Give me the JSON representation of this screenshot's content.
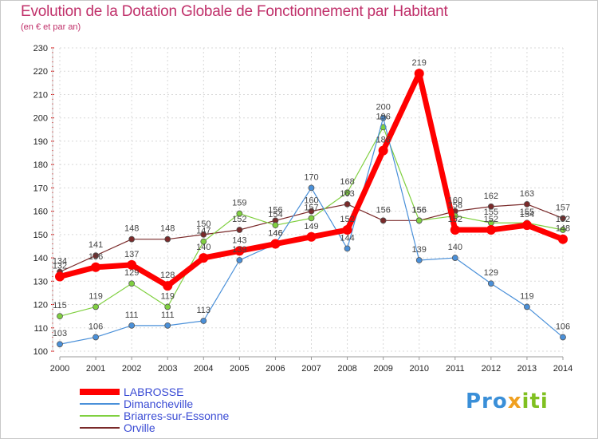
{
  "title": "Evolution de la Dotation Globale de Fonctionnement par Habitant",
  "subtitle": "(en € et par an)",
  "logo": {
    "parts": [
      "Pro",
      "x",
      "iti"
    ],
    "colors": [
      "#3a8fd8",
      "#f0a020",
      "#80c020"
    ]
  },
  "chart_data": {
    "type": "line",
    "x": [
      2000,
      2001,
      2002,
      2003,
      2004,
      2005,
      2006,
      2007,
      2008,
      2009,
      2010,
      2011,
      2012,
      2013,
      2014
    ],
    "ylim": [
      100,
      230
    ],
    "yticks": [
      100,
      110,
      120,
      130,
      140,
      150,
      160,
      170,
      180,
      190,
      200,
      210,
      220,
      230
    ],
    "grid": true,
    "legend_position": "bottom-left",
    "series": [
      {
        "name": "LABROSSE",
        "color": "#ff0000",
        "values": [
          132,
          136,
          137,
          128,
          140,
          143,
          146,
          149,
          152,
          186,
          219,
          152,
          152,
          154,
          148
        ]
      },
      {
        "name": "Dimancheville",
        "color": "#4a90d9",
        "values": [
          103,
          106,
          111,
          111,
          113,
          139,
          146,
          170,
          144,
          200,
          139,
          140,
          129,
          119,
          106
        ]
      },
      {
        "name": "Briarres-sur-Essonne",
        "color": "#80d040",
        "values": [
          115,
          119,
          129,
          119,
          147,
          159,
          154,
          157,
          168,
          196,
          156,
          158,
          155,
          155,
          152
        ]
      },
      {
        "name": "Orville",
        "color": "#7a2a2a",
        "values": [
          134,
          141,
          148,
          148,
          150,
          152,
          156,
          160,
          163,
          156,
          156,
          160,
          162,
          163,
          157
        ]
      }
    ]
  }
}
